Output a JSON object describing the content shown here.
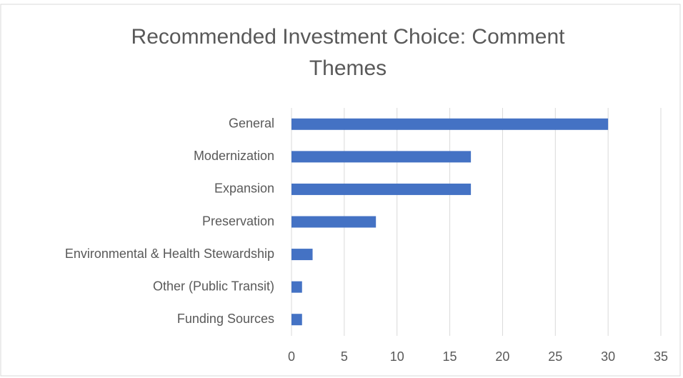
{
  "chart_data": {
    "type": "bar",
    "orientation": "horizontal",
    "title": "Recommended Investment Choice: Comment Themes",
    "categories": [
      "General",
      "Modernization",
      "Expansion",
      "Preservation",
      "Environmental & Health Stewardship",
      "Other (Public Transit)",
      "Funding Sources"
    ],
    "values": [
      30,
      17,
      17,
      8,
      2,
      1,
      1
    ],
    "color": "#4472c4",
    "xlim": [
      0,
      35
    ],
    "xticks": [
      0,
      5,
      10,
      15,
      20,
      25,
      30,
      35
    ],
    "grid": true
  }
}
